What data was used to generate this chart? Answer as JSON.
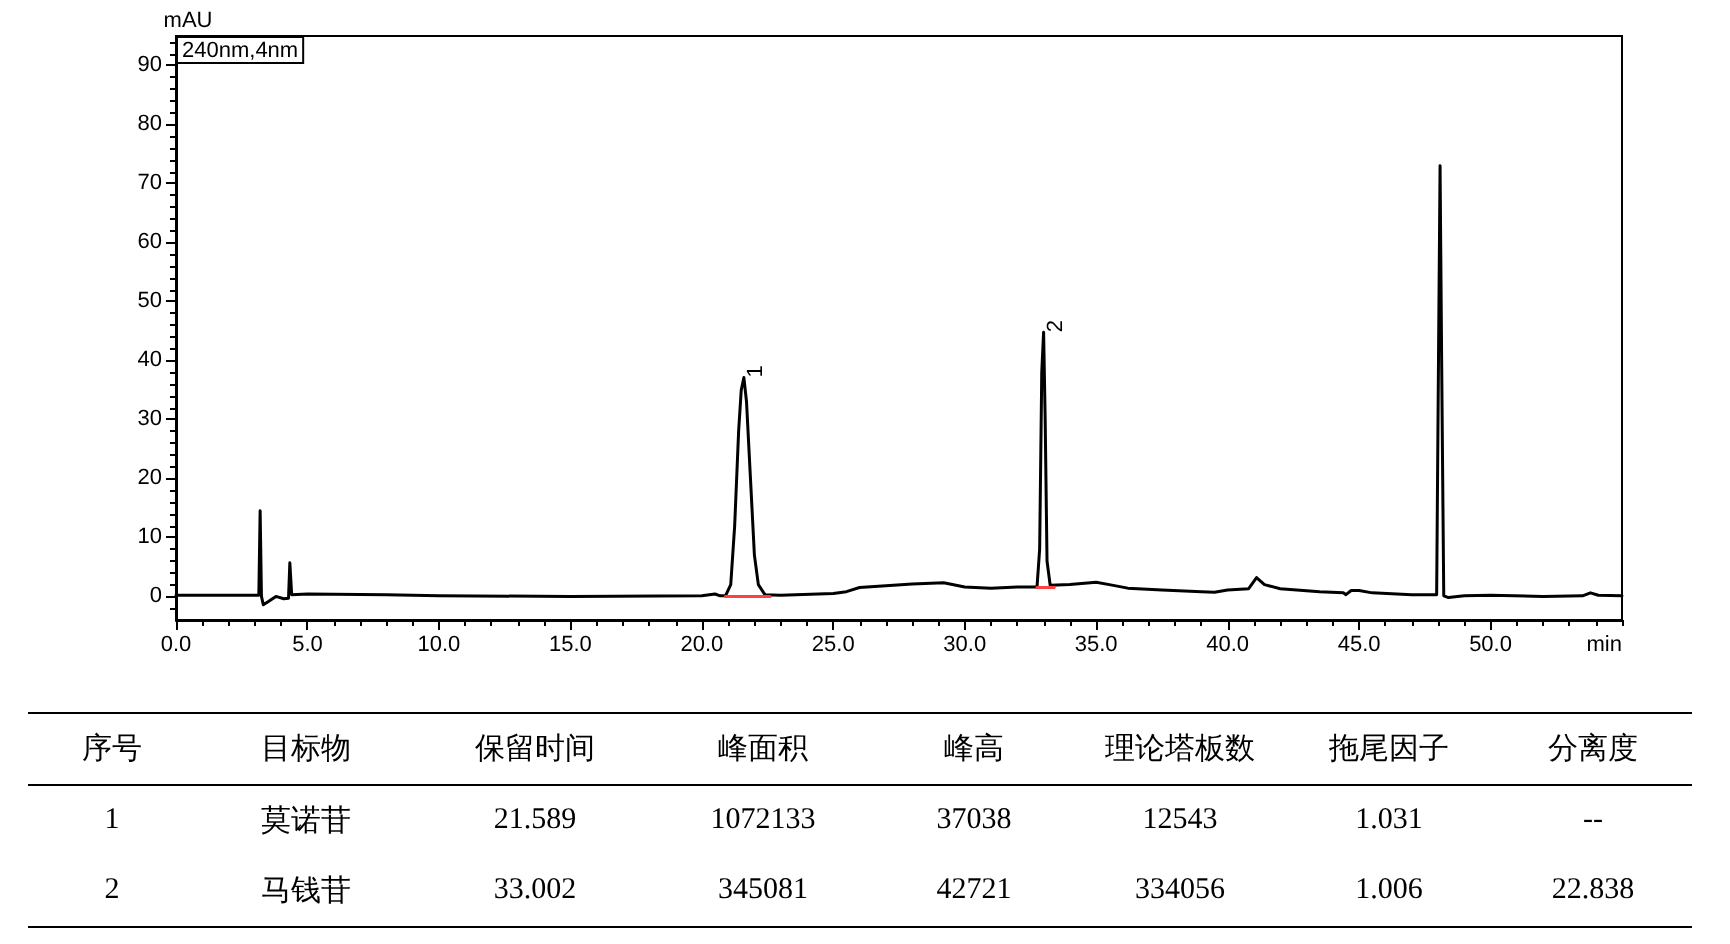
{
  "chart_data": [
    {
      "type": "line",
      "xlabel": "min",
      "ylabel": "mAU",
      "xlim": [
        0,
        55
      ],
      "ylim": [
        -4,
        95
      ],
      "xticks": [
        {
          "value": 0,
          "label": "0.0"
        },
        {
          "value": 1,
          "label": null
        },
        {
          "value": 2,
          "label": null
        },
        {
          "value": 3,
          "label": null
        },
        {
          "value": 4,
          "label": null
        },
        {
          "value": 5,
          "label": "5.0"
        },
        {
          "value": 6,
          "label": null
        },
        {
          "value": 7,
          "label": null
        },
        {
          "value": 8,
          "label": null
        },
        {
          "value": 9,
          "label": null
        },
        {
          "value": 10,
          "label": "10.0"
        },
        {
          "value": 11,
          "label": null
        },
        {
          "value": 12,
          "label": null
        },
        {
          "value": 13,
          "label": null
        },
        {
          "value": 14,
          "label": null
        },
        {
          "value": 15,
          "label": "15.0"
        },
        {
          "value": 16,
          "label": null
        },
        {
          "value": 17,
          "label": null
        },
        {
          "value": 18,
          "label": null
        },
        {
          "value": 19,
          "label": null
        },
        {
          "value": 20,
          "label": "20.0"
        },
        {
          "value": 21,
          "label": null
        },
        {
          "value": 22,
          "label": null
        },
        {
          "value": 23,
          "label": null
        },
        {
          "value": 24,
          "label": null
        },
        {
          "value": 25,
          "label": "25.0"
        },
        {
          "value": 26,
          "label": null
        },
        {
          "value": 27,
          "label": null
        },
        {
          "value": 28,
          "label": null
        },
        {
          "value": 29,
          "label": null
        },
        {
          "value": 30,
          "label": "30.0"
        },
        {
          "value": 31,
          "label": null
        },
        {
          "value": 32,
          "label": null
        },
        {
          "value": 33,
          "label": null
        },
        {
          "value": 34,
          "label": null
        },
        {
          "value": 35,
          "label": "35.0"
        },
        {
          "value": 36,
          "label": null
        },
        {
          "value": 37,
          "label": null
        },
        {
          "value": 38,
          "label": null
        },
        {
          "value": 39,
          "label": null
        },
        {
          "value": 40,
          "label": "40.0"
        },
        {
          "value": 41,
          "label": null
        },
        {
          "value": 42,
          "label": null
        },
        {
          "value": 43,
          "label": null
        },
        {
          "value": 44,
          "label": null
        },
        {
          "value": 45,
          "label": "45.0"
        },
        {
          "value": 46,
          "label": null
        },
        {
          "value": 47,
          "label": null
        },
        {
          "value": 48,
          "label": null
        },
        {
          "value": 49,
          "label": null
        },
        {
          "value": 50,
          "label": "50.0"
        },
        {
          "value": 51,
          "label": null
        },
        {
          "value": 52,
          "label": null
        },
        {
          "value": 53,
          "label": null
        },
        {
          "value": 54,
          "label": null
        },
        {
          "value": 55,
          "label": null
        }
      ],
      "yticks": [
        {
          "value": -2,
          "label": null
        },
        0,
        {
          "value": 2,
          "label": null
        },
        {
          "value": 4,
          "label": null
        },
        {
          "value": 6,
          "label": null
        },
        {
          "value": 8,
          "label": null
        },
        10,
        {
          "value": 12,
          "label": null
        },
        {
          "value": 14,
          "label": null
        },
        {
          "value": 16,
          "label": null
        },
        {
          "value": 18,
          "label": null
        },
        20,
        {
          "value": 22,
          "label": null
        },
        {
          "value": 24,
          "label": null
        },
        {
          "value": 26,
          "label": null
        },
        {
          "value": 28,
          "label": null
        },
        30,
        {
          "value": 32,
          "label": null
        },
        {
          "value": 34,
          "label": null
        },
        {
          "value": 36,
          "label": null
        },
        {
          "value": 38,
          "label": null
        },
        40,
        {
          "value": 42,
          "label": null
        },
        {
          "value": 44,
          "label": null
        },
        {
          "value": 46,
          "label": null
        },
        {
          "value": 48,
          "label": null
        },
        50,
        {
          "value": 52,
          "label": null
        },
        {
          "value": 54,
          "label": null
        },
        {
          "value": 56,
          "label": null
        },
        {
          "value": 58,
          "label": null
        },
        60,
        {
          "value": 62,
          "label": null
        },
        {
          "value": 64,
          "label": null
        },
        {
          "value": 66,
          "label": null
        },
        {
          "value": 68,
          "label": null
        },
        70,
        {
          "value": 72,
          "label": null
        },
        {
          "value": 74,
          "label": null
        },
        {
          "value": 76,
          "label": null
        },
        {
          "value": 78,
          "label": null
        },
        80,
        {
          "value": 82,
          "label": null
        },
        {
          "value": 84,
          "label": null
        },
        {
          "value": 86,
          "label": null
        },
        {
          "value": 88,
          "label": null
        },
        90,
        {
          "value": 92,
          "label": null
        },
        {
          "value": 94,
          "label": null
        }
      ],
      "marker": "none",
      "annotations": [
        "240nm,4nm",
        {
          "text": "1",
          "x": 21.6,
          "y": 37.1
        },
        {
          "text": "2",
          "x": 33.0,
          "y": 44.8
        }
      ],
      "series": [
        {
          "color": "#000000",
          "x": [
            0,
            3.0,
            3.15,
            3.2,
            3.25,
            3.32,
            3.5,
            3.8,
            4.1,
            4.28,
            4.33,
            4.4,
            5.0,
            8.0,
            10.0,
            15.0,
            20.0,
            20.5,
            20.7,
            20.9,
            21.1,
            21.25,
            21.4,
            21.5,
            21.6,
            21.7,
            21.85,
            22.0,
            22.15,
            22.4,
            23.0,
            25.0,
            25.5,
            26.0,
            27.0,
            28.0,
            29.2,
            30.0,
            31.0,
            32.0,
            32.75,
            32.85,
            32.93,
            33.0,
            33.06,
            33.13,
            33.25,
            34.0,
            35.0,
            35.5,
            36.2,
            37.5,
            39.0,
            39.5,
            40.0,
            40.8,
            41.1,
            41.4,
            42.0,
            43.5,
            44.4,
            44.5,
            44.7,
            45.0,
            45.5,
            47.0,
            47.95,
            48.02,
            48.08,
            48.14,
            48.22,
            48.4,
            49.0,
            50.0,
            52.0,
            53.5,
            53.8,
            54.1,
            55.0
          ],
          "values": [
            0.2,
            0.2,
            0.2,
            14.5,
            0,
            -1.4,
            -0.9,
            0,
            -0.4,
            -0.3,
            5.7,
            0.3,
            0.4,
            0.3,
            0.1,
            0,
            0.1,
            0.4,
            0.1,
            0.1,
            2,
            12,
            28,
            35,
            37.1,
            33,
            20,
            7,
            2,
            0.3,
            0.2,
            0.5,
            0.8,
            1.5,
            1.8,
            2.1,
            2.3,
            1.6,
            1.4,
            1.6,
            1.6,
            8,
            38,
            44.8,
            30,
            6,
            1.9,
            2.0,
            2.4,
            2.0,
            1.4,
            1.1,
            0.8,
            0.7,
            1.1,
            1.3,
            3.2,
            2.0,
            1.3,
            0.8,
            0.6,
            0.3,
            1.0,
            1.0,
            0.6,
            0.3,
            0.3,
            40,
            73.0,
            40,
            0.1,
            -0.2,
            0.1,
            0.2,
            0,
            0.1,
            0.6,
            0.2,
            0.1
          ]
        },
        {
          "color": "#ff4040",
          "x": [
            20.9,
            22.6
          ],
          "values": [
            0,
            0
          ]
        },
        {
          "color": "#ff4040",
          "x": [
            32.75,
            33.4
          ],
          "values": [
            1.5,
            1.5
          ]
        }
      ]
    },
    {
      "type": "other",
      "categories": [
        "序号",
        "目标物",
        "保留时间",
        "峰面积",
        "峰高",
        "理论塔板数",
        "拖尾因子",
        "分离度"
      ],
      "annotations": [
        "1",
        "莫诺苷",
        "21.589",
        "1072133",
        "37038",
        "12543",
        "1.031",
        "--",
        "2",
        "马钱苷",
        "33.002",
        "345081",
        "42721",
        "334056",
        "1.006",
        "22.838"
      ]
    }
  ]
}
